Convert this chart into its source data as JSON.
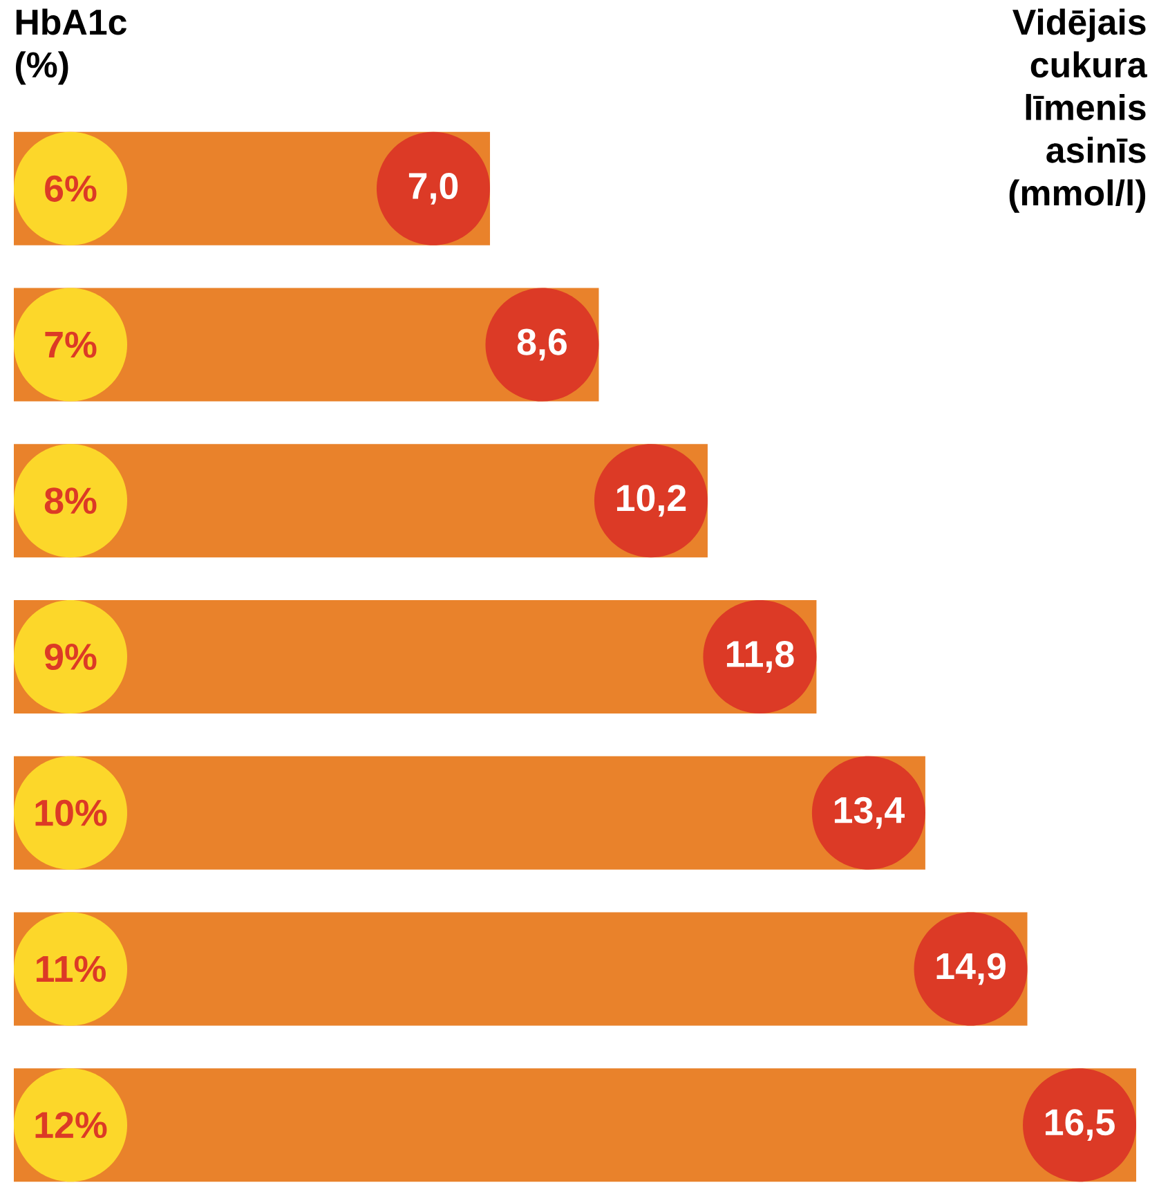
{
  "chart_data": {
    "type": "bar",
    "orientation": "horizontal",
    "ylabel": "HbA1c (%)",
    "y2label": "Vidējais cukura līmenis asinīs (mmol/l)",
    "categories": [
      "6%",
      "7%",
      "8%",
      "9%",
      "10%",
      "11%",
      "12%"
    ],
    "values": [
      7.0,
      8.6,
      10.2,
      11.8,
      13.4,
      14.9,
      16.5
    ],
    "value_labels": [
      "7,0",
      "8,6",
      "10,2",
      "11,8",
      "13,4",
      "14,9",
      "16,5"
    ],
    "color": "#e9822b"
  }
}
